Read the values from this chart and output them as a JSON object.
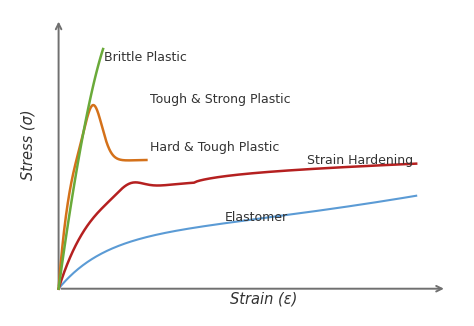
{
  "xlabel": "Strain (ε)",
  "ylabel": "Stress (σ)",
  "background_color": "#ffffff",
  "curves": {
    "brittle": {
      "color": "#6aaa3a",
      "label": "Brittle Plastic"
    },
    "tough_strong": {
      "color": "#d4711a",
      "label": "Tough & Strong Plastic"
    },
    "hard_tough": {
      "color": "#b52020",
      "label": "Hard & Tough Plastic"
    },
    "strain_hardening": {
      "color": "#b52020",
      "label": "Strain Hardening"
    },
    "elastomer": {
      "color": "#5b9bd5",
      "label": "Elastomer"
    }
  },
  "axis_color": "#707070",
  "annotation_fontsize": 9.0,
  "axislabel_fontsize": 10.5
}
